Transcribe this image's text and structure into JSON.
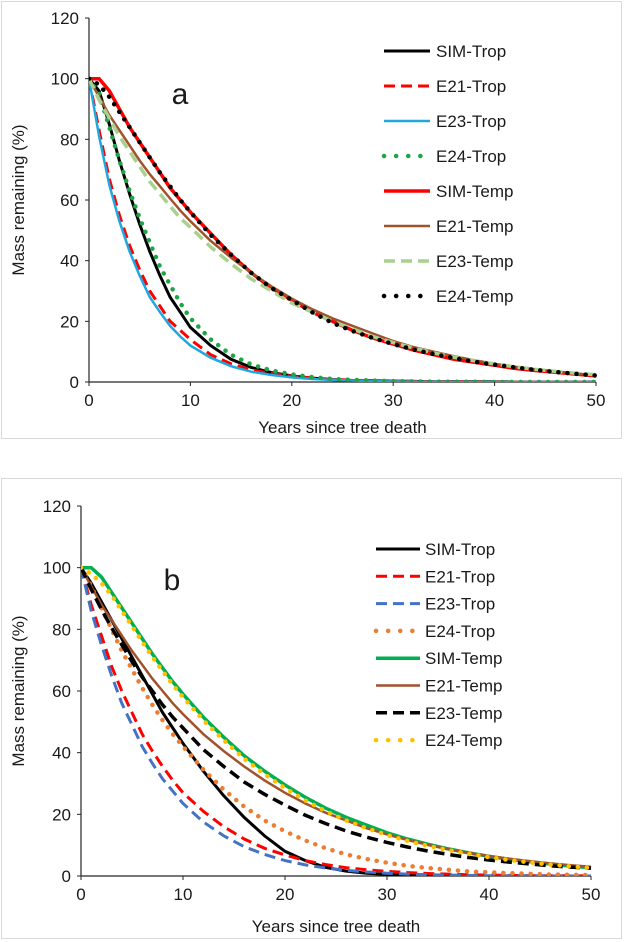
{
  "chart_data": [
    {
      "type": "line",
      "panel_label": "a",
      "xlabel": "Years since tree death",
      "ylabel": "Mass remaining (%)",
      "xlim": [
        0,
        50
      ],
      "ylim": [
        0,
        120
      ],
      "xticks": [
        0,
        10,
        20,
        30,
        40,
        50
      ],
      "yticks": [
        0,
        20,
        40,
        60,
        80,
        100,
        120
      ],
      "x": [
        0,
        1,
        2,
        3,
        4,
        5,
        6,
        7,
        8,
        9,
        10,
        12,
        14,
        16,
        18,
        20,
        22,
        24,
        26,
        28,
        30,
        32,
        34,
        36,
        38,
        40,
        42,
        44,
        46,
        48,
        50
      ],
      "series": [
        {
          "name": "SIM-Trop",
          "color": "#000000",
          "style": "solid",
          "width": 3,
          "values": [
            100,
            96,
            85,
            73,
            62,
            52,
            43,
            35,
            28,
            23,
            18,
            12,
            7.5,
            4.8,
            3.1,
            2.0,
            1.3,
            0.8,
            0.5,
            0.4,
            0.3,
            0.2,
            0.1,
            0.1,
            0.1,
            0.1,
            0,
            0,
            0,
            0,
            0
          ]
        },
        {
          "name": "E21-Trop",
          "color": "#ff0000",
          "style": "dash",
          "width": 3,
          "values": [
            100,
            83,
            67,
            55,
            45,
            37,
            30,
            25,
            20,
            17,
            14,
            9,
            6,
            4,
            2.8,
            1.9,
            1.3,
            0.9,
            0.6,
            0.4,
            0.3,
            0.2,
            0.1,
            0.1,
            0.1,
            0,
            0,
            0,
            0,
            0,
            0
          ]
        },
        {
          "name": "E23-Trop",
          "color": "#1fa7e0",
          "style": "solid",
          "width": 2.5,
          "values": [
            100,
            81,
            65,
            53,
            43,
            35,
            28,
            23,
            18.5,
            15,
            12,
            8,
            5.2,
            3.4,
            2.3,
            1.5,
            1.0,
            0.7,
            0.5,
            0.3,
            0.2,
            0.1,
            0.1,
            0,
            0,
            0,
            0,
            0,
            0,
            0,
            0
          ]
        },
        {
          "name": "E24-Trop",
          "color": "#1ea646",
          "style": "dot",
          "width": 4.5,
          "values": [
            100,
            95,
            84,
            73,
            63,
            54,
            46,
            38,
            32,
            26,
            21,
            14,
            9,
            5.8,
            3.8,
            2.5,
            1.6,
            1.0,
            0.7,
            0.5,
            0.3,
            0.2,
            0.1,
            0.1,
            0.1,
            0,
            0,
            0,
            0,
            0,
            0
          ]
        },
        {
          "name": "SIM-Temp",
          "color": "#ff0000",
          "style": "solid",
          "width": 3.5,
          "values": [
            100,
            100,
            96,
            90,
            84,
            79,
            74,
            69,
            64,
            60,
            56,
            49,
            42,
            36,
            31,
            27,
            23,
            20,
            17,
            14.5,
            12.5,
            10.5,
            9,
            7.5,
            6.5,
            5.5,
            4.5,
            3.8,
            3.2,
            2.6,
            2.0
          ]
        },
        {
          "name": "E21-Temp",
          "color": "#a0522d",
          "style": "solid",
          "width": 2.5,
          "values": [
            100,
            94,
            88,
            83,
            78,
            73,
            68.5,
            64.5,
            60.5,
            56.5,
            53,
            46.5,
            41,
            36,
            31.5,
            27.5,
            24,
            21,
            18.5,
            16,
            13.5,
            11.5,
            10,
            8.5,
            7.2,
            6,
            5,
            4.2,
            3.5,
            2.8,
            2.2
          ]
        },
        {
          "name": "E23-Temp",
          "color": "#a9d08e",
          "style": "dash",
          "width": 3.5,
          "values": [
            100,
            93,
            87,
            81,
            76,
            71,
            66,
            62,
            58,
            54,
            51,
            44.5,
            39,
            34,
            30,
            26,
            23,
            20,
            17.5,
            15,
            13,
            11.2,
            9.6,
            8.2,
            7,
            6,
            5,
            4.2,
            3.5,
            2.9,
            2.4
          ]
        },
        {
          "name": "E24-Temp",
          "color": "#000000",
          "style": "dot",
          "width": 4.5,
          "values": [
            100,
            98,
            94,
            89,
            84,
            79,
            74,
            69,
            64.5,
            60,
            56,
            48.5,
            42,
            36,
            31,
            27,
            23,
            19.5,
            16.8,
            14.5,
            12.5,
            10.7,
            9.2,
            7.9,
            6.7,
            5.7,
            4.8,
            4.0,
            3.3,
            2.7,
            2.1
          ]
        }
      ]
    },
    {
      "type": "line",
      "panel_label": "b",
      "xlabel": "Years since tree death",
      "ylabel": "Mass remaining (%)",
      "xlim": [
        0,
        50
      ],
      "ylim": [
        0,
        120
      ],
      "xticks": [
        0,
        10,
        20,
        30,
        40,
        50
      ],
      "yticks": [
        0,
        20,
        40,
        60,
        80,
        100,
        120
      ],
      "x": [
        0,
        1,
        2,
        3,
        4,
        5,
        6,
        7,
        8,
        9,
        10,
        12,
        14,
        16,
        18,
        20,
        22,
        24,
        26,
        28,
        30,
        32,
        34,
        36,
        38,
        40,
        42,
        44,
        46,
        48,
        50
      ],
      "series": [
        {
          "name": "SIM-Trop",
          "color": "#000000",
          "style": "solid",
          "width": 3,
          "values": [
            100,
            95,
            89,
            83,
            77,
            71,
            65,
            59,
            53,
            48,
            43,
            34,
            26,
            19,
            13,
            8,
            5,
            2.8,
            1.6,
            0.9,
            0.5,
            0.3,
            0.2,
            0.1,
            0.1,
            0,
            0,
            0,
            0,
            0,
            0
          ]
        },
        {
          "name": "E21-Trop",
          "color": "#ff0000",
          "style": "dash",
          "width": 3,
          "values": [
            100,
            88,
            78,
            68,
            60,
            53,
            46,
            40.5,
            35.5,
            31,
            27,
            21,
            16,
            12,
            9,
            6.8,
            5,
            3.7,
            2.7,
            2.0,
            1.5,
            1.1,
            0.8,
            0.6,
            0.4,
            0.3,
            0.2,
            0.1,
            0.1,
            0.1,
            0
          ]
        },
        {
          "name": "E23-Trop",
          "color": "#4472c4",
          "style": "dash",
          "width": 3,
          "values": [
            100,
            86,
            75,
            65,
            56,
            49,
            42,
            36.5,
            31.5,
            27.5,
            23.5,
            17.5,
            13,
            9.5,
            7,
            5,
            3.6,
            2.6,
            1.8,
            1.3,
            0.9,
            0.6,
            0.4,
            0.3,
            0.2,
            0.1,
            0.1,
            0.1,
            0,
            0,
            0
          ]
        },
        {
          "name": "E24-Trop",
          "color": "#ed7d31",
          "style": "dot",
          "width": 4.5,
          "values": [
            100,
            94,
            87,
            80,
            73,
            67,
            61,
            55.5,
            50.5,
            46,
            42,
            34.5,
            28,
            22.5,
            18,
            14.5,
            11.5,
            9,
            7,
            5.5,
            4.3,
            3.3,
            2.6,
            2.0,
            1.5,
            1.2,
            0.9,
            0.7,
            0.5,
            0.4,
            0.3
          ]
        },
        {
          "name": "SIM-Temp",
          "color": "#00b050",
          "style": "solid",
          "width": 3.5,
          "values": [
            100,
            100,
            97,
            92,
            87,
            82,
            77,
            72,
            67.5,
            63,
            59,
            51.5,
            45,
            39,
            34,
            29.5,
            25.5,
            22,
            19,
            16.5,
            14,
            12,
            10.3,
            8.8,
            7.5,
            6.4,
            5.4,
            4.6,
            3.9,
            3.2,
            2.7
          ]
        },
        {
          "name": "E21-Temp",
          "color": "#a0522d",
          "style": "solid",
          "width": 2.5,
          "values": [
            100,
            94,
            88,
            83,
            78,
            73,
            68.5,
            64,
            60,
            56,
            52.5,
            46,
            40.5,
            35.5,
            31,
            27,
            23.5,
            20.5,
            18,
            15.5,
            13.5,
            11.7,
            10.1,
            8.7,
            7.5,
            6.5,
            5.6,
            4.8,
            4.1,
            3.5,
            3.0
          ]
        },
        {
          "name": "E23-Temp",
          "color": "#000000",
          "style": "dash",
          "width": 3.5,
          "values": [
            100,
            93,
            86.5,
            80.5,
            75,
            69.5,
            64.5,
            60,
            55.5,
            51.5,
            48,
            41,
            35.5,
            30.5,
            26.5,
            23,
            19.7,
            17,
            14.6,
            12.6,
            10.9,
            9.4,
            8.1,
            7.0,
            6.0,
            5.2,
            4.5,
            3.9,
            3.3,
            2.9,
            2.5
          ]
        },
        {
          "name": "E24-Temp",
          "color": "#ffc000",
          "style": "dot",
          "width": 4.5,
          "values": [
            100,
            98,
            95,
            91,
            86,
            81,
            76,
            71,
            66.5,
            62,
            58,
            50.5,
            44,
            38,
            33,
            28.5,
            24.5,
            21,
            18,
            15.5,
            13.3,
            11.4,
            9.8,
            8.4,
            7.2,
            6.1,
            5.2,
            4.4,
            3.7,
            3.1,
            2.6
          ]
        }
      ]
    }
  ]
}
